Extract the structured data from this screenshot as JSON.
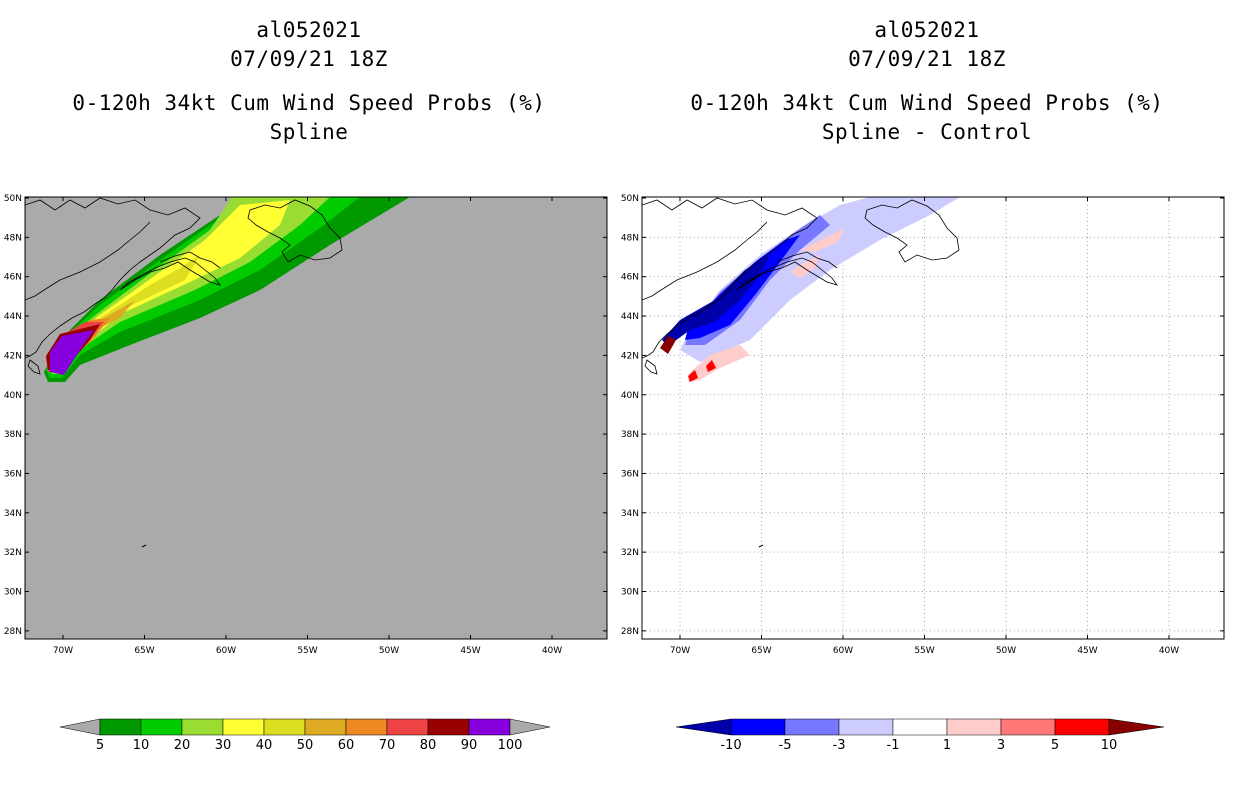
{
  "left_panel": {
    "storm_id": "al052021",
    "datetime": "07/09/21 18Z",
    "product": "0-120h 34kt Cum Wind Speed Probs (%)",
    "subtitle": "Spline"
  },
  "right_panel": {
    "storm_id": "al052021",
    "datetime": "07/09/21 18Z",
    "product": "0-120h 34kt Cum Wind Speed Probs (%)",
    "subtitle": "Spline - Control"
  },
  "map": {
    "lat_labels": [
      "50N",
      "48N",
      "46N",
      "44N",
      "42N",
      "40N",
      "38N",
      "36N",
      "34N",
      "32N",
      "30N",
      "28N"
    ],
    "lon_labels": [
      "70W",
      "65W",
      "60W",
      "55W",
      "50W",
      "45W",
      "40W"
    ],
    "land_color": "#aaaaaa"
  },
  "left_colorbar": {
    "labels": [
      "5",
      "10",
      "20",
      "30",
      "40",
      "50",
      "60",
      "70",
      "80",
      "90",
      "100"
    ],
    "colors": [
      "#009900",
      "#00cc00",
      "#99dd33",
      "#ffff33",
      "#dddd22",
      "#ddaa22",
      "#ee8822",
      "#ee4444",
      "#990000",
      "#8800dd"
    ],
    "end_color": "#aaaaaa"
  },
  "right_colorbar": {
    "labels": [
      "-10",
      "-5",
      "-3",
      "-1",
      "1",
      "3",
      "5",
      "10"
    ],
    "colors": [
      "#0000aa",
      "#0000ff",
      "#7777ff",
      "#ccccff",
      "#ffffff",
      "#ffcccc",
      "#ff7777",
      "#ff0000",
      "#880000"
    ]
  }
}
